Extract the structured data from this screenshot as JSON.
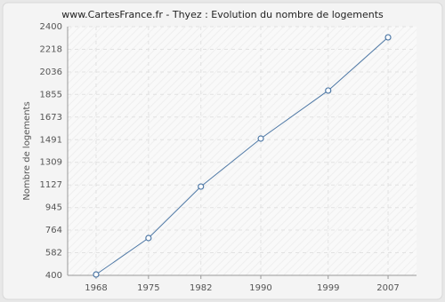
{
  "chart_data": {
    "type": "line",
    "title": "www.CartesFrance.fr - Thyez : Evolution du nombre de logements",
    "y_label": "Nombre de logements",
    "x": [
      1968,
      1975,
      1982,
      1990,
      1999,
      2007
    ],
    "series": [
      {
        "name": "Nombre de logements",
        "color": "#4f79a6",
        "values": [
          407,
          700,
          1114,
          1500,
          1886,
          2314
        ]
      }
    ],
    "xlim": [
      1964.2,
      2010.8
    ],
    "xticks": [
      1968,
      1975,
      1982,
      1990,
      1999,
      2007
    ],
    "ylim": [
      400,
      2400
    ],
    "yticks": [
      400,
      582,
      764,
      945,
      1127,
      1309,
      1491,
      1673,
      1855,
      2036,
      2218,
      2400
    ],
    "grid": true
  }
}
